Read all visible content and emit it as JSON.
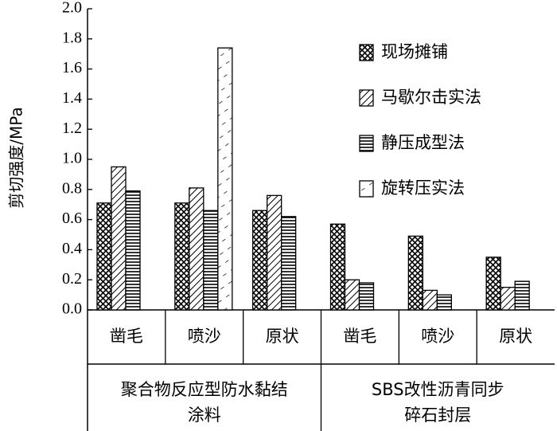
{
  "chart_data": {
    "type": "bar",
    "ylabel": "剪切强度/MPa",
    "ylim": [
      0,
      2.0
    ],
    "yticks": [
      "0.0",
      "0.2",
      "0.4",
      "0.6",
      "0.8",
      "1.0",
      "1.2",
      "1.4",
      "1.6",
      "1.8",
      "2.0"
    ],
    "grid": false,
    "legend_position": "top-right",
    "categories": [
      "凿毛",
      "喷沙",
      "原状",
      "凿毛",
      "喷沙",
      "原状"
    ],
    "groups": [
      {
        "label": "聚合物反应型防水黏结涂料",
        "label_lines": [
          "聚合物反应型防水黏结",
          "涂料"
        ],
        "categories": [
          0,
          1,
          2
        ]
      },
      {
        "label": "SBS改性沥青同步碎石封层",
        "label_lines": [
          "SBS改性沥青同步",
          "碎石封层"
        ],
        "categories": [
          3,
          4,
          5
        ]
      }
    ],
    "series": [
      {
        "name": "现场摊铺",
        "pattern": "crosshatch",
        "values": [
          0.71,
          0.71,
          0.66,
          0.57,
          0.49,
          0.35
        ]
      },
      {
        "name": "马歇尔击实法",
        "pattern": "diagonal",
        "values": [
          0.95,
          0.81,
          0.76,
          0.2,
          0.13,
          0.15
        ]
      },
      {
        "name": "静压成型法",
        "pattern": "horizontal",
        "values": [
          0.79,
          0.66,
          0.62,
          0.18,
          0.1,
          0.19
        ]
      },
      {
        "name": "旋转压实法",
        "pattern": "sparse-diagonal",
        "values": [
          null,
          1.74,
          null,
          null,
          null,
          null
        ]
      }
    ]
  }
}
